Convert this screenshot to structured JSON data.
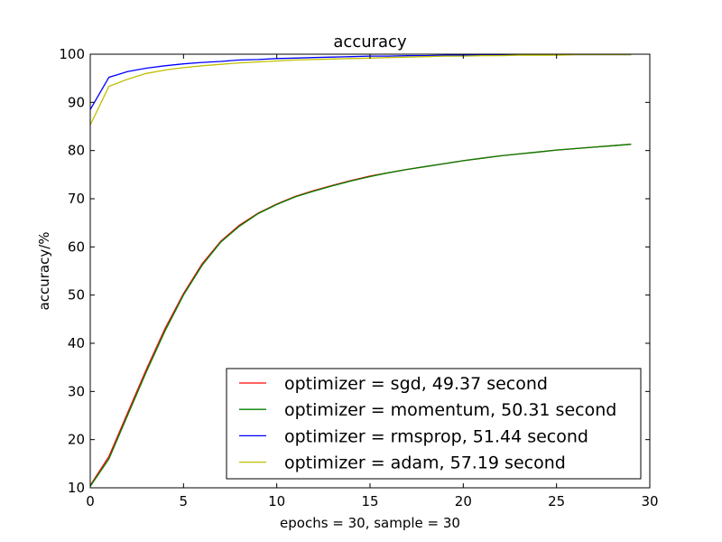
{
  "chart_data": {
    "type": "line",
    "title": "accuracy",
    "xlabel": "epochs = 30, sample = 30",
    "ylabel": "accuracy/%",
    "xlim": [
      0,
      30
    ],
    "ylim": [
      10,
      100
    ],
    "xticks": [
      0,
      5,
      10,
      15,
      20,
      25,
      30
    ],
    "yticks": [
      10,
      20,
      30,
      40,
      50,
      60,
      70,
      80,
      90,
      100
    ],
    "grid": false,
    "legend_position": "lower-right",
    "x": [
      0,
      1,
      2,
      3,
      4,
      5,
      6,
      7,
      8,
      9,
      10,
      11,
      12,
      13,
      14,
      15,
      16,
      17,
      18,
      19,
      20,
      21,
      22,
      23,
      24,
      25,
      26,
      27,
      28,
      29
    ],
    "series": [
      {
        "name": "optimizer = sgd, 49.37 second",
        "color": "#ff0000",
        "values": [
          10.5,
          16.5,
          25.5,
          34.5,
          43.0,
          50.3,
          56.5,
          61.2,
          64.5,
          67.0,
          68.9,
          70.5,
          71.7,
          72.8,
          73.8,
          74.7,
          75.4,
          76.1,
          76.7,
          77.3,
          77.9,
          78.4,
          78.9,
          79.3,
          79.7,
          80.1,
          80.4,
          80.7,
          81.0,
          81.3
        ]
      },
      {
        "name": "optimizer = momentum, 50.31 second",
        "color": "#008000",
        "values": [
          10.3,
          16.0,
          25.0,
          34.0,
          42.5,
          50.0,
          56.2,
          61.0,
          64.3,
          66.9,
          68.8,
          70.4,
          71.6,
          72.7,
          73.7,
          74.6,
          75.4,
          76.1,
          76.7,
          77.3,
          77.9,
          78.4,
          78.9,
          79.3,
          79.7,
          80.1,
          80.4,
          80.7,
          81.0,
          81.3
        ]
      },
      {
        "name": "optimizer = rmsprop, 51.44 second",
        "color": "#0000ff",
        "values": [
          88.5,
          95.2,
          96.4,
          97.1,
          97.6,
          98.0,
          98.3,
          98.5,
          98.8,
          98.9,
          99.1,
          99.2,
          99.3,
          99.4,
          99.5,
          99.6,
          99.6,
          99.7,
          99.7,
          99.8,
          99.8,
          99.8,
          99.9,
          99.9,
          99.9,
          99.9,
          99.9,
          99.9,
          99.9,
          99.9
        ]
      },
      {
        "name": "optimizer = adam, 57.19 second",
        "color": "#bfbf00",
        "values": [
          85.3,
          93.3,
          94.8,
          96.0,
          96.7,
          97.2,
          97.6,
          97.9,
          98.2,
          98.4,
          98.6,
          98.8,
          98.9,
          99.0,
          99.1,
          99.2,
          99.3,
          99.4,
          99.5,
          99.6,
          99.6,
          99.7,
          99.7,
          99.8,
          99.8,
          99.8,
          99.9,
          99.9,
          99.9,
          99.9
        ]
      }
    ]
  }
}
